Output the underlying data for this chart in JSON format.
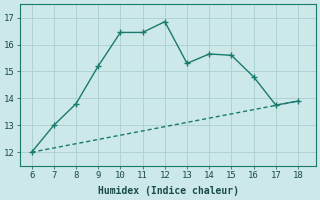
{
  "line1_x": [
    6,
    7,
    8,
    9,
    10,
    11,
    12,
    13,
    14,
    15,
    16,
    17,
    18
  ],
  "line1_y": [
    12.0,
    13.0,
    13.8,
    15.2,
    16.45,
    16.45,
    16.85,
    15.3,
    15.65,
    15.6,
    14.8,
    13.75,
    13.9
  ],
  "line2_x": [
    6,
    18
  ],
  "line2_y": [
    12.0,
    13.9
  ],
  "line_color": "#1a7a6e",
  "bg_color": "#cce8e8",
  "grid_color": "#aacfcf",
  "xlabel": "Humidex (Indice chaleur)",
  "xlim": [
    5.5,
    18.8
  ],
  "ylim": [
    11.5,
    17.5
  ],
  "xticks": [
    6,
    7,
    8,
    9,
    10,
    11,
    12,
    13,
    14,
    15,
    16,
    17,
    18
  ],
  "yticks": [
    12,
    13,
    14,
    15,
    16,
    17
  ],
  "markersize": 4,
  "linewidth": 1.0,
  "font_color": "#1a4a4a",
  "tick_fontsize": 6.5,
  "xlabel_fontsize": 7.0
}
